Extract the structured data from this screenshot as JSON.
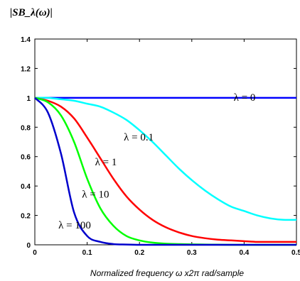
{
  "chart_data": {
    "type": "line",
    "title": "",
    "ylabel": "|SB_λ(ω)|",
    "xlabel": "Normalized frequency ω x2π rad/sample",
    "xlim": [
      0,
      0.5
    ],
    "ylim": [
      0,
      1.4
    ],
    "xticks": [
      "0",
      "0.1",
      "0.2",
      "0.3",
      "0.4",
      "0.5"
    ],
    "yticks": [
      "0",
      "0.2",
      "0.4",
      "0.6",
      "0.8",
      "1",
      "1.2",
      "1.4"
    ],
    "grid": false,
    "x": [
      0,
      0.025,
      0.05,
      0.075,
      0.1,
      0.125,
      0.15,
      0.175,
      0.2,
      0.225,
      0.25,
      0.275,
      0.3,
      0.325,
      0.35,
      0.375,
      0.4,
      0.425,
      0.45,
      0.475,
      0.5
    ],
    "series": [
      {
        "label": "λ = 0",
        "color": "#0000ff",
        "values": [
          1,
          1,
          1,
          1,
          1,
          1,
          1,
          1,
          1,
          1,
          1,
          1,
          1,
          1,
          1,
          1,
          1,
          1,
          1,
          1,
          1
        ]
      },
      {
        "label": "λ = 0.1",
        "color": "#00ffff",
        "values": [
          1,
          1,
          0.99,
          0.98,
          0.96,
          0.94,
          0.9,
          0.85,
          0.78,
          0.7,
          0.61,
          0.52,
          0.44,
          0.37,
          0.31,
          0.26,
          0.23,
          0.2,
          0.18,
          0.17,
          0.17
        ]
      },
      {
        "label": "λ = 1",
        "color": "#ff0000",
        "values": [
          1,
          0.98,
          0.94,
          0.86,
          0.73,
          0.59,
          0.45,
          0.33,
          0.24,
          0.17,
          0.12,
          0.085,
          0.06,
          0.045,
          0.035,
          0.03,
          0.025,
          0.02,
          0.02,
          0.02,
          0.02
        ]
      },
      {
        "label": "λ = 10",
        "color": "#00ff00",
        "values": [
          1,
          0.97,
          0.88,
          0.7,
          0.45,
          0.25,
          0.13,
          0.06,
          0.03,
          0.015,
          0.008,
          0.005,
          0.003,
          0.002,
          0.001,
          0,
          0,
          0,
          0,
          0,
          0
        ]
      },
      {
        "label": "λ = 100",
        "color": "#0000cc",
        "values": [
          1,
          0.9,
          0.62,
          0.22,
          0.06,
          0.02,
          0.005,
          0.002,
          0,
          0,
          0,
          0,
          0,
          0,
          0,
          0,
          0,
          0,
          0,
          0,
          0
        ]
      }
    ],
    "annotations": [
      "λ = 0",
      "λ = 0.1",
      "λ = 1",
      "λ = 10",
      "λ = 100"
    ]
  }
}
